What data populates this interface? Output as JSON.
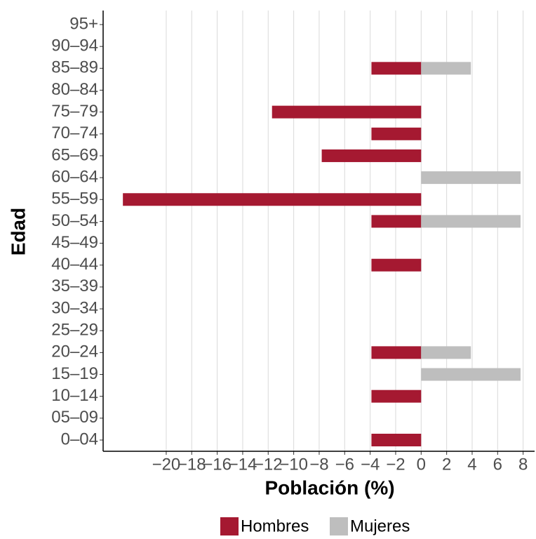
{
  "chart_data": {
    "type": "bar",
    "orientation": "horizontal",
    "xlabel": "Población (%)",
    "ylabel": "Edad",
    "categories": [
      "0–04",
      "05–09",
      "10–14",
      "15–19",
      "20–24",
      "25–29",
      "30–34",
      "35–39",
      "40–44",
      "45–49",
      "50–54",
      "55–59",
      "60–64",
      "65–69",
      "70–74",
      "75–79",
      "80–84",
      "85–89",
      "90–94",
      "95+"
    ],
    "series": [
      {
        "name": "Hombres",
        "color": "#a51931",
        "values": [
          -3.9,
          0,
          -3.9,
          0,
          -3.9,
          0,
          0,
          0,
          -3.9,
          0,
          -3.9,
          -23.4,
          0,
          -7.8,
          -3.9,
          -11.7,
          0,
          -3.9,
          0,
          0
        ]
      },
      {
        "name": "Mujeres",
        "color": "#bebebe",
        "values": [
          0,
          0,
          0,
          7.8,
          3.9,
          0,
          0,
          0,
          0,
          0,
          7.8,
          0,
          7.8,
          0,
          0,
          0,
          0,
          3.9,
          0,
          0
        ]
      }
    ],
    "xlim": [
      -24.95,
      8.9
    ],
    "xticks": [
      {
        "value": -20,
        "label": "−20"
      },
      {
        "value": -18,
        "label": "−18"
      },
      {
        "value": -16,
        "label": "−16"
      },
      {
        "value": -14,
        "label": "−14"
      },
      {
        "value": -12,
        "label": "−12"
      },
      {
        "value": -10,
        "label": "−10"
      },
      {
        "value": -8,
        "label": "−8"
      },
      {
        "value": -6,
        "label": "−6"
      },
      {
        "value": -4,
        "label": "−4"
      },
      {
        "value": -2,
        "label": "−2"
      },
      0,
      2,
      4,
      6,
      8
    ],
    "grid": true,
    "legend": "bottom"
  }
}
